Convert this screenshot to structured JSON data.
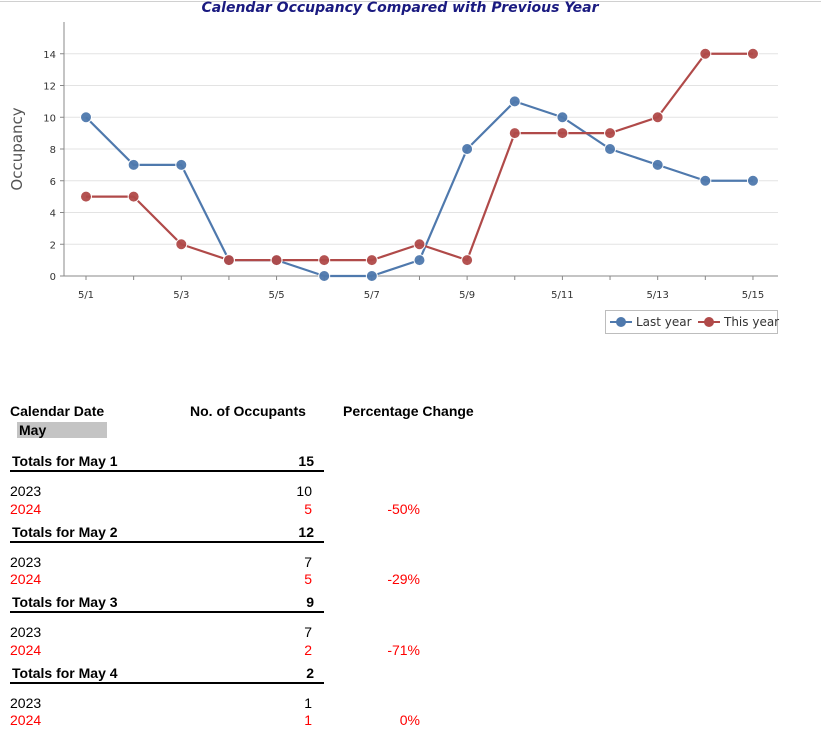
{
  "report": {
    "title": "Calendar Occupancy Compared with Previous Year"
  },
  "chart_data": {
    "type": "line",
    "title": "Calendar Occupancy Compared with Previous Year",
    "xlabel": "",
    "ylabel": "Occupancy",
    "x": [
      1,
      2,
      3,
      4,
      5,
      6,
      7,
      8,
      9,
      10,
      11,
      12,
      13,
      14,
      15
    ],
    "x_tick_labels": [
      "5/1",
      "5/3",
      "5/5",
      "5/7",
      "5/9",
      "5/11",
      "5/13",
      "5/15"
    ],
    "y_ticks": [
      0,
      2,
      4,
      6,
      8,
      10,
      12,
      14
    ],
    "ylim": [
      0,
      15
    ],
    "grid": true,
    "legend_position": "bottom-right",
    "series": [
      {
        "name": "Last year",
        "color": "#4f79ad",
        "values": [
          10,
          7,
          7,
          1,
          1,
          0,
          0,
          1,
          8,
          11,
          10,
          8,
          7,
          6,
          6
        ]
      },
      {
        "name": "This year",
        "color": "#b04a49",
        "values": [
          5,
          5,
          2,
          1,
          1,
          1,
          1,
          2,
          1,
          9,
          9,
          9,
          10,
          14,
          14
        ]
      }
    ]
  },
  "table": {
    "col_date": "Calendar Date",
    "col_occupants": "No. of Occupants",
    "col_change": "Percentage Change",
    "group_label": "May",
    "days": [
      {
        "total_label": "Totals for May 1",
        "total": "15",
        "prev_year": "2023",
        "prev_count": "10",
        "cur_year": "2024",
        "cur_count": "5",
        "change": "-50%"
      },
      {
        "total_label": "Totals for May 2",
        "total": "12",
        "prev_year": "2023",
        "prev_count": "7",
        "cur_year": "2024",
        "cur_count": "5",
        "change": "-29%"
      },
      {
        "total_label": "Totals for May 3",
        "total": "9",
        "prev_year": "2023",
        "prev_count": "7",
        "cur_year": "2024",
        "cur_count": "2",
        "change": "-71%"
      },
      {
        "total_label": "Totals for May 4",
        "total": "2",
        "prev_year": "2023",
        "prev_count": "1",
        "cur_year": "2024",
        "cur_count": "1",
        "change": "0%"
      }
    ]
  }
}
